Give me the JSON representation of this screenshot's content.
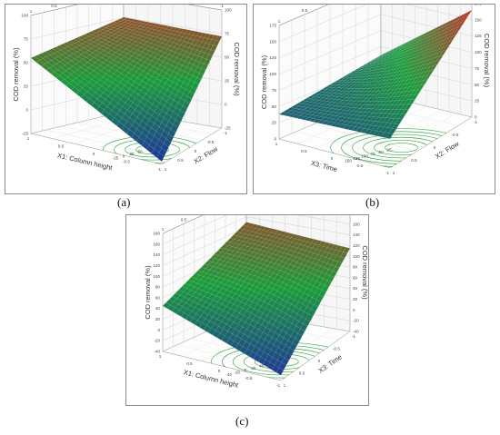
{
  "captions": {
    "a": "(a)",
    "b": "(b)",
    "c": "(c)"
  },
  "palette": {
    "low": "#1f2f9e",
    "mid": "#1a9c3a",
    "high": "#d42020",
    "contour": "#1e9a2e",
    "grid": "#c8c8c8",
    "frame": "#8c8c8c"
  },
  "chart_data": [
    {
      "id": "a",
      "type": "surface3d",
      "top_left_label": "X2: Flow",
      "top_right_label": "X1: Column height",
      "z_left_label": "COD removal (%)",
      "z_right_label": "COD removal (%)",
      "front_left_label": "X1: Column height",
      "front_right_label": "X2: Flow",
      "x_range": [
        -1,
        1
      ],
      "y_range": [
        -1,
        1
      ],
      "zlim": [
        -25,
        100
      ],
      "z_ticks": [
        "100",
        "75",
        "50",
        "25",
        "0",
        "-25"
      ],
      "z_ticks_right": [
        "100",
        "75",
        "50",
        "25",
        "0",
        "-25"
      ],
      "top_ticks_left": [
        "1",
        "0.5",
        "0",
        "-0.5",
        "-1"
      ],
      "top_ticks_right": [
        "1",
        "0.5",
        "0",
        "-0.5",
        "-1"
      ],
      "front_left_ticks": [
        "1",
        "0.5",
        "0",
        "-0.5",
        "-1"
      ],
      "front_right_ticks": [
        "1",
        "0.5",
        "0",
        "-0.5",
        "-1"
      ],
      "contour_labels": [
        "50",
        "25",
        "0",
        "-25"
      ],
      "corners": {
        "back": 75,
        "left": 55,
        "right": 72,
        "front": -22
      },
      "legend": "none",
      "grid": true
    },
    {
      "id": "b",
      "type": "surface3d",
      "top_left_label": "X3: Time",
      "top_right_label": "X2: Flow",
      "z_left_label": "COD removal (%)",
      "z_right_label": "COD removal (%)",
      "front_left_label": "X3: Time",
      "front_right_label": "X2: Flow",
      "x_range": [
        -1,
        1
      ],
      "y_range": [
        -1,
        1
      ],
      "zlim": [
        0,
        175
      ],
      "z_ticks": [
        "175",
        "150",
        "125",
        "100",
        "75",
        "50",
        "25",
        "0"
      ],
      "z_ticks_right": [
        "175",
        "150",
        "125",
        "100",
        "75",
        "50",
        "25",
        "0"
      ],
      "top_ticks_left": [
        "1",
        "0.5",
        "0",
        "-0.5",
        "-1"
      ],
      "top_ticks_right": [
        "1",
        "0.5",
        "0",
        "-0.5"
      ],
      "front_left_ticks": [
        "1",
        "0.5",
        "0",
        "-0.5",
        "-1"
      ],
      "front_right_ticks": [
        "1",
        "0.5",
        "0",
        "-0.5",
        "-1"
      ],
      "contour_labels": [
        "25",
        "50",
        "75",
        "100",
        "125",
        "150"
      ],
      "corners": {
        "back": 62,
        "left": 38,
        "right": 165,
        "front": 45
      },
      "legend": "none",
      "grid": true
    },
    {
      "id": "c",
      "type": "surface3d",
      "top_left_label": "X3: Time",
      "top_right_label": "X1: Column height",
      "z_left_label": "COD removal (%)",
      "z_right_label": "COD removal (%)",
      "front_left_label": "X1: Column height",
      "front_right_label": "X3: Time",
      "x_range": [
        -1,
        1
      ],
      "y_range": [
        -1,
        1
      ],
      "zlim": [
        -40,
        180
      ],
      "z_ticks": [
        "180",
        "160",
        "140",
        "120",
        "100",
        "80",
        "60",
        "40",
        "20",
        "0",
        "-20",
        "-40"
      ],
      "z_ticks_right": [
        "180",
        "160",
        "140",
        "120",
        "100",
        "80",
        "60",
        "40",
        "20",
        "0",
        "-20",
        "-40"
      ],
      "top_ticks_left": [
        "1",
        "0.5",
        "0",
        "-0.5",
        "-1"
      ],
      "top_ticks_right": [
        "1",
        "0.5",
        "0",
        "-0.5",
        "-1"
      ],
      "front_left_ticks": [
        "1",
        "0.5",
        "0",
        "-0.5",
        "-1"
      ],
      "front_right_ticks": [
        "1",
        "0.5",
        "0",
        "-0.5",
        "-1"
      ],
      "contour_labels": [
        "60",
        "40",
        "20",
        "0",
        "-20",
        "-40"
      ],
      "corners": {
        "back": 130,
        "left": 45,
        "right": 115,
        "front": -30
      },
      "legend": "none",
      "grid": true
    }
  ]
}
